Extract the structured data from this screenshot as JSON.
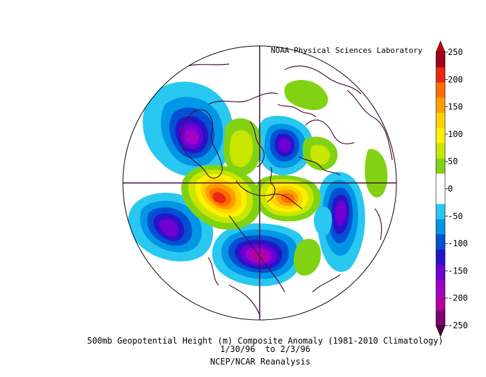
{
  "credit": "NOAA Physical Sciences Laboratory",
  "caption": {
    "line1": "500mb Geopotential Height (m) Composite Anomaly (1981-2010 Climatology)",
    "line2": "1/30/96  to 2/3/96",
    "line3": "NCEP/NCAR Reanalysis"
  },
  "colorbar": {
    "ticks": [
      "250",
      "200",
      "150",
      "100",
      "50",
      "0",
      "-50",
      "-100",
      "-150",
      "-200",
      "-250"
    ],
    "colors": [
      "#a0001e",
      "#e62814",
      "#ff6e00",
      "#ffa000",
      "#ffd200",
      "#fff000",
      "#c8e600",
      "#82d214",
      "#ffffff",
      "#ffffff",
      "#28c8f0",
      "#0096e6",
      "#0050d2",
      "#2814c8",
      "#6e00d2",
      "#a000c8",
      "#b400a0",
      "#82006e"
    ],
    "top_color": "#c80000",
    "bottom_color": "#500040"
  },
  "map": {
    "projection": "north polar stereographic",
    "coastline_color": "#4b0f3c"
  }
}
